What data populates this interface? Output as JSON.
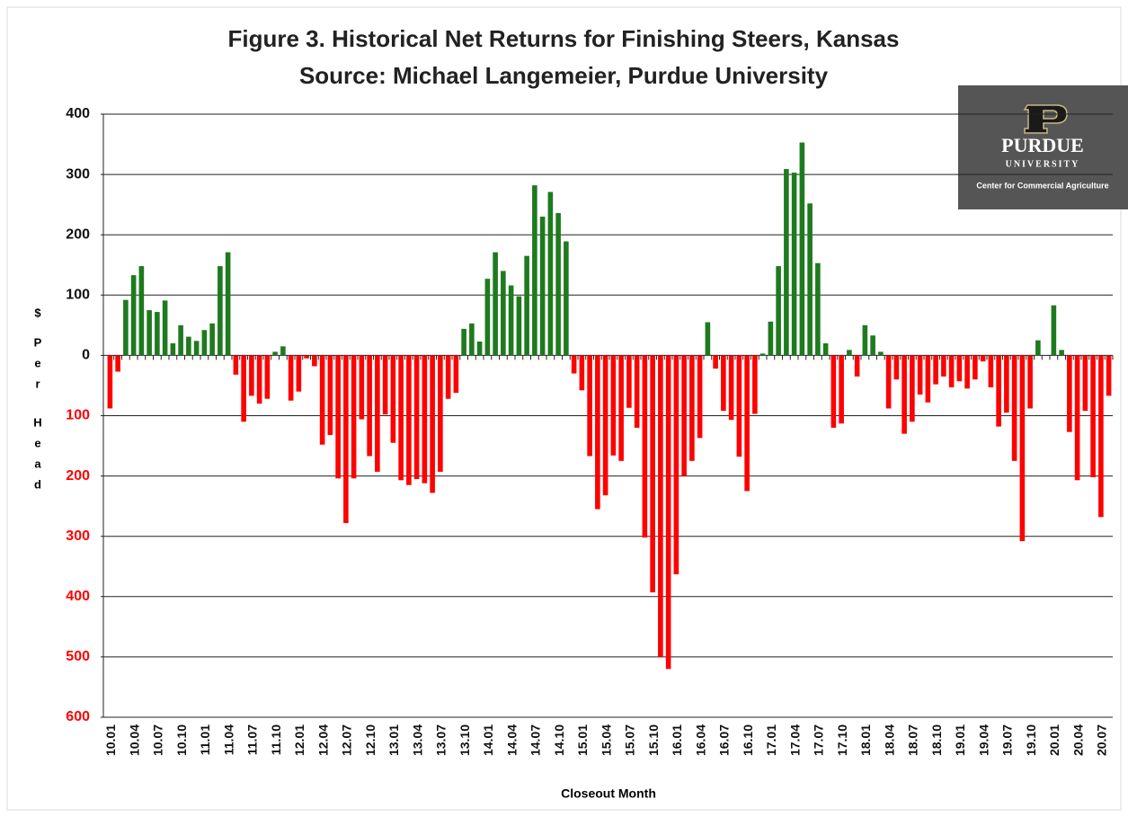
{
  "chart_data": {
    "type": "bar",
    "title": "Figure 3.  Historical Net Returns for Finishing Steers, Kansas",
    "subtitle": "Source:  Michael Langemeier, Purdue University",
    "x_label": "Closeout Month",
    "y_label": [
      "$",
      "P",
      "e",
      "r",
      "H",
      "e",
      "a",
      "d"
    ],
    "categories": [
      "10.01",
      null,
      null,
      "10.04",
      null,
      null,
      "10.07",
      null,
      null,
      "10.10",
      null,
      null,
      "11.01",
      null,
      null,
      "11.04",
      null,
      null,
      "11.07",
      null,
      null,
      "11.10",
      null,
      null,
      "12.01",
      null,
      null,
      "12.04",
      null,
      null,
      "12.07",
      null,
      null,
      "12.10",
      null,
      null,
      "13.01",
      null,
      null,
      "13.04",
      null,
      null,
      "13.07",
      null,
      null,
      "13.10",
      null,
      null,
      "14.01",
      null,
      null,
      "14.04",
      null,
      null,
      "14.07",
      null,
      null,
      "14.10",
      null,
      null,
      "15.01",
      null,
      null,
      "15.04",
      null,
      null,
      "15.07",
      null,
      null,
      "15.10",
      null,
      null,
      "16.01",
      null,
      null,
      "16.04",
      null,
      null,
      "16.07",
      null,
      null,
      "16.10",
      null,
      null,
      "17.01",
      null,
      null,
      "17.04",
      null,
      null,
      "17.07",
      null,
      null,
      "17.10",
      null,
      null,
      "18.01",
      null,
      null,
      "18.04",
      null,
      null,
      "18.07",
      null,
      null,
      "18.10",
      null,
      null,
      "19.01",
      null,
      null,
      "19.04",
      null,
      null,
      "19.07",
      null,
      null,
      "19.10",
      null,
      null,
      "20.01",
      null,
      null,
      "20.04",
      null,
      null,
      "20.07",
      null
    ],
    "values": [
      -88,
      -27,
      92,
      133,
      148,
      75,
      72,
      91,
      20,
      50,
      31,
      24,
      42,
      53,
      148,
      171,
      -32,
      -110,
      -67,
      -80,
      -72,
      6,
      15,
      -75,
      -60,
      -5,
      -18,
      -148,
      -132,
      -204,
      -278,
      -204,
      -106,
      -167,
      -193,
      -98,
      -145,
      -207,
      -215,
      -205,
      -212,
      -228,
      -193,
      -72,
      -62,
      44,
      53,
      23,
      127,
      171,
      140,
      116,
      98,
      165,
      282,
      230,
      271,
      236,
      189,
      -30,
      -58,
      -167,
      -255,
      -232,
      -166,
      -175,
      -87,
      -120,
      -302,
      -393,
      -500,
      -520,
      -363,
      -200,
      -175,
      -137,
      55,
      -22,
      -92,
      -107,
      -168,
      -225,
      -97,
      3,
      56,
      148,
      309,
      303,
      353,
      252,
      153,
      20,
      -120,
      -113,
      9,
      -35,
      50,
      33,
      6,
      -88,
      -40,
      -130,
      -110,
      -65,
      -78,
      -48,
      -35,
      -53,
      -43,
      -55,
      -40,
      -10,
      -53,
      -118,
      -95,
      -175,
      -308,
      -88,
      25,
      0,
      83,
      9,
      -127,
      -207,
      -92,
      -202,
      -268,
      -67
    ],
    "positive_color": "#1e7a1e",
    "negative_color": "#ff0000",
    "ylim": [
      -600,
      400
    ],
    "yticks": [
      {
        "value": -600,
        "label": "600"
      },
      {
        "value": -500,
        "label": "500"
      },
      {
        "value": -400,
        "label": "400"
      },
      {
        "value": -300,
        "label": "300"
      },
      {
        "value": -200,
        "label": "200"
      },
      {
        "value": -100,
        "label": "100"
      },
      0,
      100,
      200,
      300,
      400
    ],
    "grid": true
  },
  "logo": {
    "name": "PURDUE",
    "subname": "UNIVERSITY",
    "caption": "Center for Commercial Agriculture"
  }
}
